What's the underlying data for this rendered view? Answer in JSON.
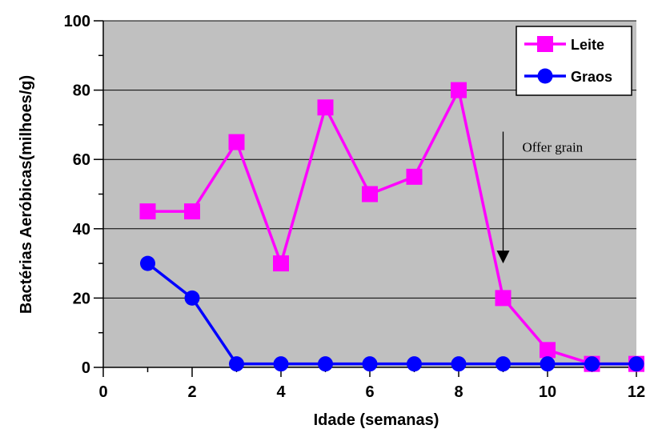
{
  "chart_data": {
    "type": "line",
    "title": "",
    "xlabel": "Idade (semanas)",
    "ylabel": "Bactérias Aeróbicas(milhoes/g)",
    "xlim": [
      0,
      12
    ],
    "ylim": [
      0,
      100
    ],
    "xticks": [
      "0",
      "2",
      "4",
      "6",
      "8",
      "10",
      "12"
    ],
    "yticks": [
      "0",
      "20",
      "40",
      "60",
      "80",
      "100"
    ],
    "grid": true,
    "legend_position": "top-right",
    "plot_background": "#c0c0c0",
    "series": [
      {
        "name": "Leite",
        "color": "#ff00ff",
        "marker": "square",
        "x": [
          1,
          2,
          3,
          4,
          5,
          6,
          7,
          8,
          9,
          10,
          11,
          12
        ],
        "y": [
          45,
          45,
          65,
          30,
          75,
          50,
          55,
          80,
          20,
          5,
          1,
          1
        ]
      },
      {
        "name": "Graos",
        "color": "#0000ff",
        "marker": "circle",
        "x": [
          1,
          2,
          3,
          4,
          5,
          6,
          7,
          8,
          9,
          10,
          11,
          12
        ],
        "y": [
          30,
          20,
          1,
          1,
          1,
          1,
          1,
          1,
          1,
          1,
          1,
          1
        ]
      }
    ],
    "annotations": [
      {
        "text": "Offer grain",
        "x": 9,
        "arrow_from_y": 68,
        "arrow_to_y": 30
      }
    ]
  }
}
